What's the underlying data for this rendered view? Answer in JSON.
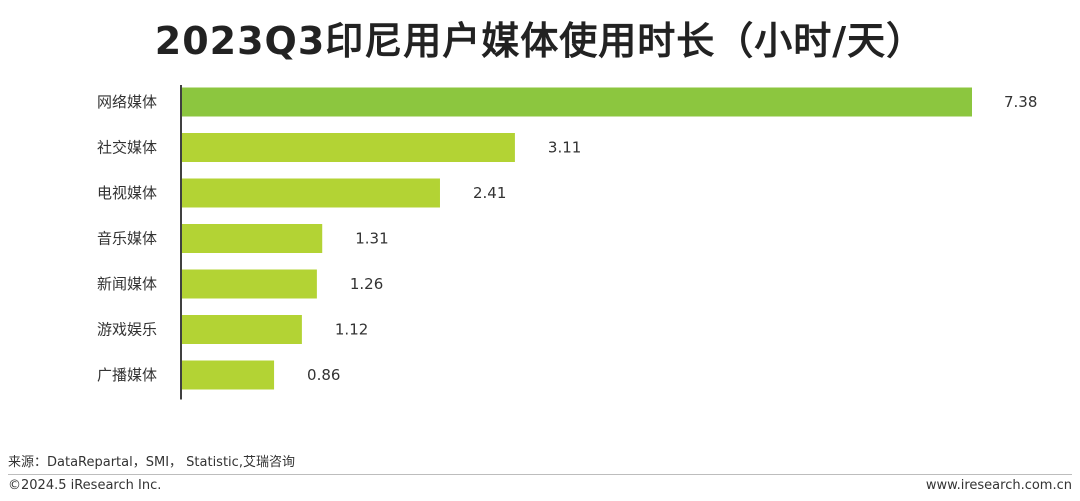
{
  "page": {
    "title": "2023Q3印尼用户媒体使用时长（小时/天）",
    "source": "来源：DataRepartal，SMI， Statistic,艾瑞咨询",
    "copyright": "©2024.5 iResearch Inc.",
    "site": "www.iresearch.com.cn"
  },
  "colors": {
    "highlight_bar": "#8cc63f",
    "bar": "#b3d334",
    "axis": "#000000",
    "text": "#333333"
  },
  "chart_data": {
    "type": "bar",
    "orientation": "horizontal",
    "title": "2023Q3印尼用户媒体使用时长（小时/天）",
    "categories": [
      "网络媒体",
      "社交媒体",
      "电视媒体",
      "音乐媒体",
      "新闻媒体",
      "游戏娱乐",
      "广播媒体"
    ],
    "values": [
      7.38,
      3.11,
      2.41,
      1.31,
      1.26,
      1.12,
      0.86
    ],
    "value_labels": [
      "7.38",
      "3.11",
      "2.41",
      "1.31",
      "1.26",
      "1.12",
      "0.86"
    ],
    "xlim": [
      0,
      7.38
    ],
    "xlabel": "",
    "ylabel": "",
    "grid": false,
    "legend": "none"
  }
}
